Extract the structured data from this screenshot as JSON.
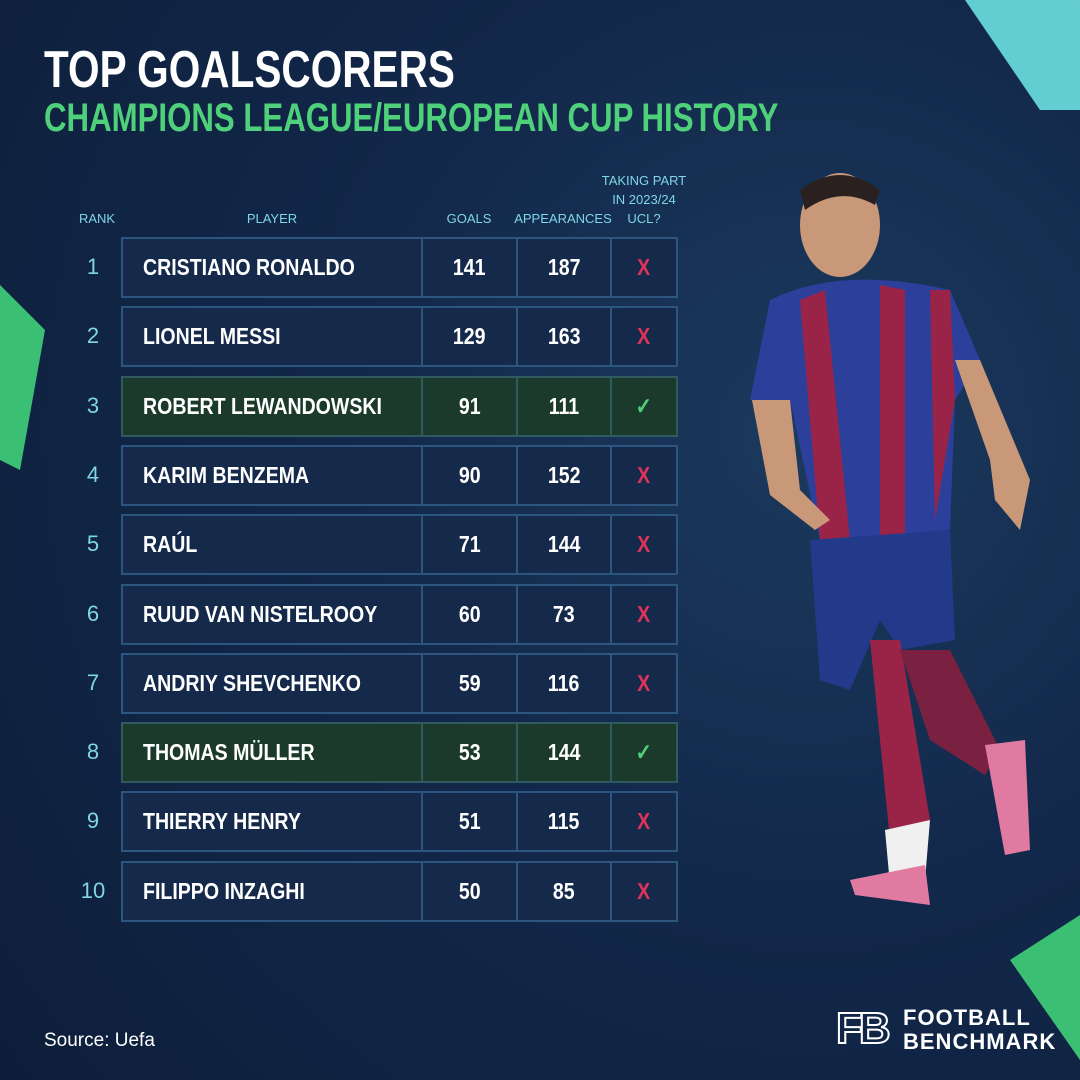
{
  "header": {
    "title": "TOP GOALSCORERS",
    "subtitle": "CHAMPIONS LEAGUE/EUROPEAN CUP HISTORY"
  },
  "table": {
    "columns": [
      "RANK",
      "PLAYER",
      "GOALS",
      "APPEARANCES",
      "TAKING PART IN 2023/24 UCL?"
    ],
    "rows": [
      [
        1,
        "CRISTIANO RONALDO",
        141,
        187,
        "X"
      ],
      [
        2,
        "LIONEL MESSI",
        129,
        163,
        "X"
      ],
      [
        3,
        "ROBERT LEWANDOWSKI",
        91,
        111,
        "✓"
      ],
      [
        4,
        "KARIM BENZEMA",
        90,
        152,
        "X"
      ],
      [
        5,
        "RAÚL",
        71,
        144,
        "X"
      ],
      [
        6,
        "RUUD VAN NISTELROOY",
        60,
        73,
        "X"
      ],
      [
        7,
        "ANDRIY SHEVCHENKO",
        59,
        116,
        "X"
      ],
      [
        8,
        "THOMAS MÜLLER",
        53,
        144,
        "✓"
      ],
      [
        9,
        "THIERRY HENRY",
        51,
        115,
        "X"
      ],
      [
        10,
        "FILIPPO INZAGHI",
        50,
        85,
        "X"
      ]
    ]
  },
  "footer": {
    "source": "Source: Uefa",
    "logo": "FB",
    "brand": [
      "FOOTBALL",
      "BENCHMARK"
    ]
  }
}
